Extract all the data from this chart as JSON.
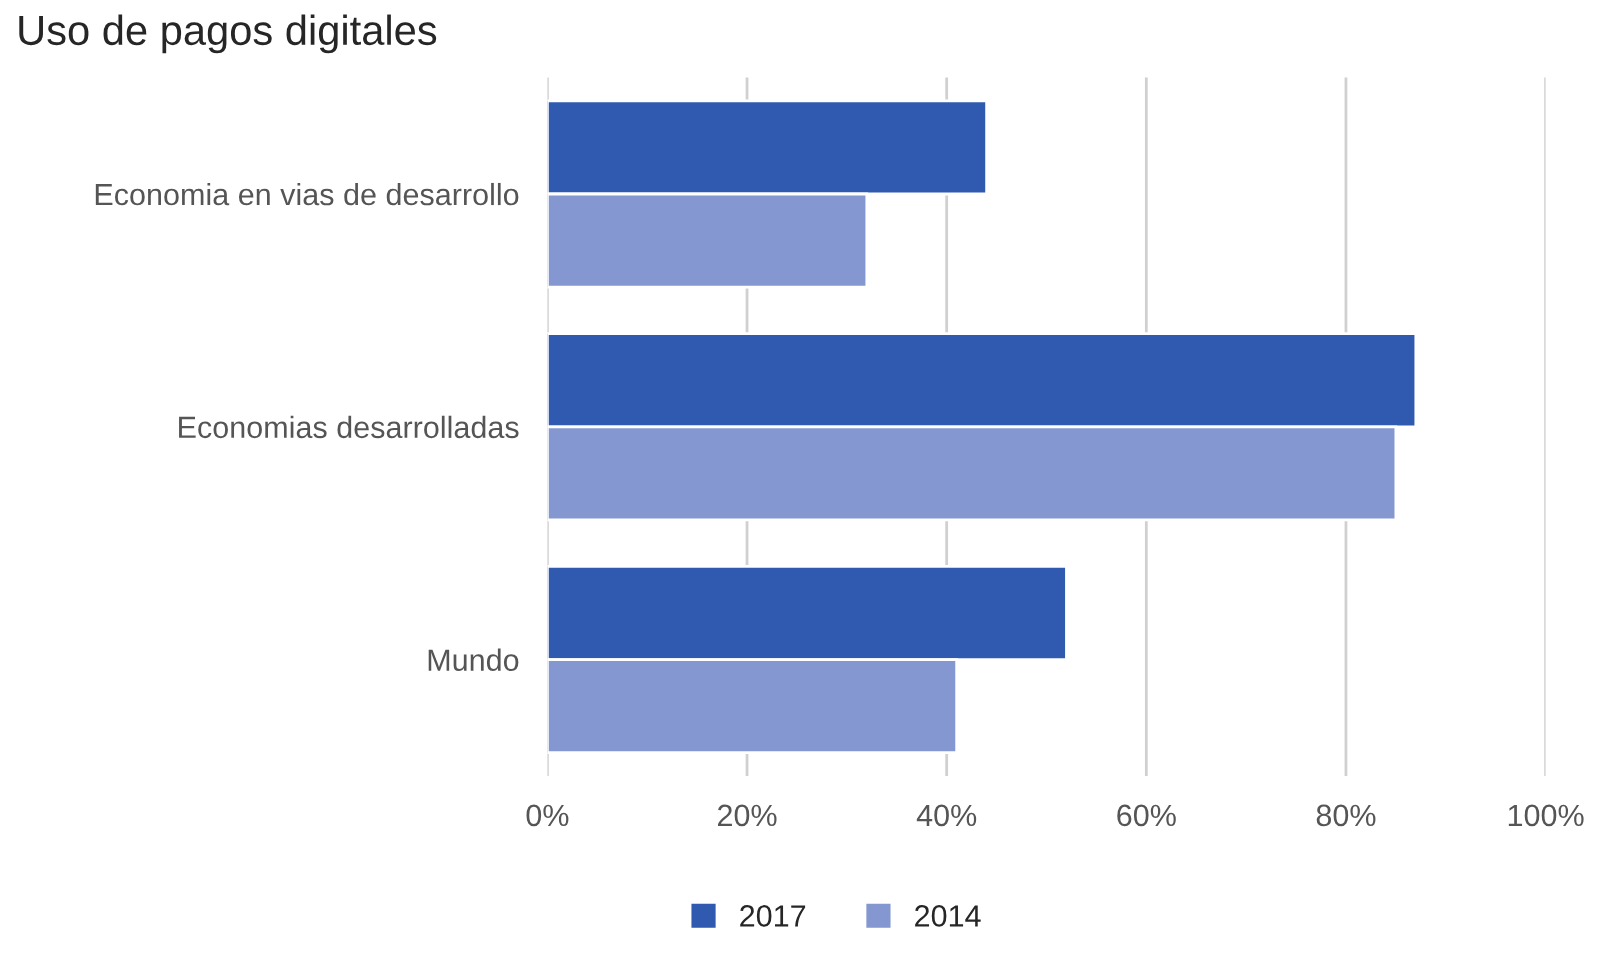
{
  "chart_data": {
    "type": "bar",
    "orientation": "horizontal",
    "title": "Uso de pagos digitales",
    "categories": [
      "Economia en vias de desarrollo",
      "Economias desarrolladas",
      "Mundo"
    ],
    "series": [
      {
        "name": "2017",
        "color": "#2f5aaf",
        "values": [
          44,
          87,
          52
        ]
      },
      {
        "name": "2014",
        "color": "#8497d0",
        "values": [
          32,
          85,
          41
        ]
      }
    ],
    "xlim": [
      0,
      100
    ],
    "xticks": [
      {
        "value": 0,
        "label": "0%"
      },
      {
        "value": 20,
        "label": "20%"
      },
      {
        "value": 40,
        "label": "40%"
      },
      {
        "value": 60,
        "label": "60%"
      },
      {
        "value": 80,
        "label": "80%"
      },
      {
        "value": 100,
        "label": "100%"
      }
    ],
    "grid": "x",
    "legend": "bottom"
  }
}
